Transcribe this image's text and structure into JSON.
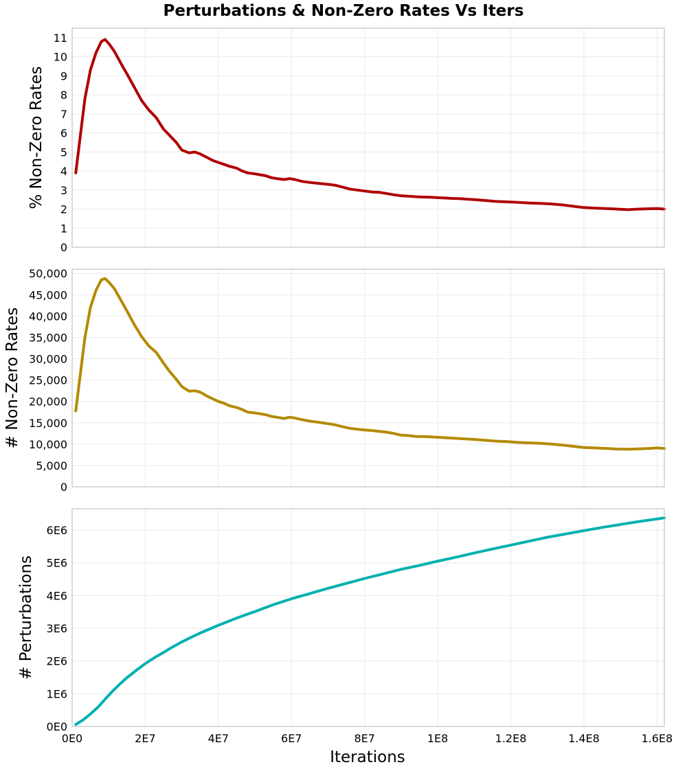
{
  "chart_data": {
    "title": "Perturbations & Non-Zero Rates Vs Iters",
    "type": "line",
    "x": {
      "label": "Iterations",
      "range": [
        0,
        162000000
      ],
      "ticks": [
        0,
        20000000,
        40000000,
        60000000,
        80000000,
        100000000,
        120000000,
        140000000,
        160000000
      ],
      "tick_labels": [
        "0E0",
        "2E7",
        "4E7",
        "6E7",
        "8E7",
        "1E8",
        "1.2E8",
        "1.4E8",
        "1.6E8"
      ]
    },
    "panels": [
      {
        "name": "pct-nonzero",
        "ylabel": "% Non-Zero Rates",
        "ylim": [
          0,
          11.5
        ],
        "yticks": [
          0,
          1,
          2,
          3,
          4,
          5,
          6,
          7,
          8,
          9,
          10,
          11
        ],
        "ytick_labels": [
          "0",
          "1",
          "2",
          "3",
          "4",
          "5",
          "6",
          "7",
          "8",
          "9",
          "10",
          "11"
        ],
        "color": "#b00000",
        "series": {
          "name": "% Non-Zero Rates",
          "x": [
            1000000,
            3500000,
            5000000,
            6500000,
            8000000,
            9000000,
            10000000,
            11500000,
            13500000,
            15000000,
            17000000,
            19000000,
            21000000,
            23000000,
            25000000,
            26500000,
            28500000,
            30000000,
            32000000,
            33500000,
            35000000,
            37000000,
            38500000,
            40000000,
            41500000,
            43000000,
            45000000,
            46500000,
            48000000,
            50000000,
            51500000,
            53000000,
            54500000,
            56000000,
            58000000,
            59500000,
            61000000,
            63000000,
            65000000,
            67500000,
            70000000,
            72000000,
            74000000,
            76000000,
            78000000,
            80000000,
            82000000,
            84000000,
            86000000,
            88000000,
            90000000,
            92000000,
            94000000,
            96000000,
            98000000,
            100000000,
            102000000,
            104000000,
            106000000,
            108000000,
            110000000,
            113000000,
            116000000,
            119000000,
            122000000,
            125000000,
            128000000,
            131000000,
            134000000,
            137000000,
            140000000,
            143000000,
            146000000,
            149000000,
            152000000,
            155000000,
            158000000,
            160000000,
            162000000
          ],
          "y": [
            3.9,
            7.8,
            9.3,
            10.2,
            10.8,
            10.9,
            10.7,
            10.3,
            9.6,
            9.1,
            8.4,
            7.7,
            7.2,
            6.8,
            6.2,
            5.9,
            5.5,
            5.1,
            4.95,
            5.0,
            4.9,
            4.7,
            4.55,
            4.45,
            4.35,
            4.25,
            4.15,
            4.0,
            3.9,
            3.85,
            3.8,
            3.75,
            3.65,
            3.6,
            3.55,
            3.6,
            3.55,
            3.45,
            3.4,
            3.35,
            3.3,
            3.25,
            3.15,
            3.05,
            3.0,
            2.95,
            2.9,
            2.88,
            2.82,
            2.75,
            2.7,
            2.68,
            2.65,
            2.63,
            2.62,
            2.6,
            2.58,
            2.56,
            2.55,
            2.52,
            2.5,
            2.45,
            2.4,
            2.38,
            2.35,
            2.32,
            2.3,
            2.27,
            2.22,
            2.15,
            2.08,
            2.05,
            2.03,
            2.0,
            1.97,
            2.0,
            2.02,
            2.03,
            2.0
          ]
        }
      },
      {
        "name": "count-nonzero",
        "ylabel": "# Non-Zero Rates",
        "ylim": [
          0,
          51000
        ],
        "yticks": [
          0,
          5000,
          10000,
          15000,
          20000,
          25000,
          30000,
          35000,
          40000,
          45000,
          50000
        ],
        "ytick_labels": [
          "0",
          "5,000",
          "10,000",
          "15,000",
          "20,000",
          "25,000",
          "30,000",
          "35,000",
          "40,000",
          "45,000",
          "50,000"
        ],
        "color": "#b38a00",
        "series": {
          "name": "# Non-Zero Rates",
          "x": [
            1000000,
            3500000,
            5000000,
            6500000,
            8000000,
            9000000,
            10000000,
            11500000,
            13500000,
            15000000,
            17000000,
            19000000,
            21000000,
            23000000,
            25000000,
            26500000,
            28500000,
            30000000,
            32000000,
            33500000,
            35000000,
            37000000,
            38500000,
            40000000,
            41500000,
            43000000,
            45000000,
            46500000,
            48000000,
            50000000,
            51500000,
            53000000,
            54500000,
            56000000,
            58000000,
            59500000,
            61000000,
            63000000,
            65000000,
            67500000,
            70000000,
            72000000,
            74000000,
            76000000,
            78000000,
            80000000,
            82000000,
            84000000,
            86000000,
            88000000,
            90000000,
            92000000,
            94000000,
            96000000,
            98000000,
            100000000,
            102000000,
            104000000,
            106000000,
            108000000,
            110000000,
            113000000,
            116000000,
            119000000,
            122000000,
            125000000,
            128000000,
            131000000,
            134000000,
            137000000,
            140000000,
            143000000,
            146000000,
            149000000,
            152000000,
            155000000,
            158000000,
            160000000,
            162000000
          ],
          "y": [
            17800,
            35000,
            42000,
            46000,
            48500,
            48800,
            48000,
            46500,
            43500,
            41200,
            38000,
            35200,
            33000,
            31500,
            29000,
            27200,
            25200,
            23500,
            22400,
            22500,
            22200,
            21200,
            20600,
            20000,
            19600,
            19000,
            18600,
            18100,
            17500,
            17300,
            17100,
            16900,
            16500,
            16300,
            16000,
            16300,
            16100,
            15700,
            15400,
            15100,
            14800,
            14500,
            14100,
            13700,
            13500,
            13300,
            13200,
            13000,
            12800,
            12500,
            12100,
            12000,
            11800,
            11800,
            11700,
            11600,
            11500,
            11400,
            11300,
            11200,
            11100,
            10900,
            10700,
            10600,
            10400,
            10300,
            10200,
            10000,
            9800,
            9500,
            9200,
            9100,
            9000,
            8850,
            8800,
            8900,
            9000,
            9100,
            9000
          ]
        }
      },
      {
        "name": "perturbations",
        "ylabel": "# Perturbations",
        "ylim": [
          0,
          6650000
        ],
        "yticks": [
          0,
          1000000,
          2000000,
          3000000,
          4000000,
          5000000,
          6000000
        ],
        "ytick_labels": [
          "0E0",
          "1E6",
          "2E6",
          "3E6",
          "4E6",
          "5E6",
          "6E6"
        ],
        "color": "#00b0b0",
        "series": {
          "name": "# Perturbations",
          "x": [
            1000000,
            3000000,
            5000000,
            7000000,
            9000000,
            11000000,
            13000000,
            15000000,
            17500000,
            20000000,
            22500000,
            25000000,
            27500000,
            30000000,
            32500000,
            35000000,
            37500000,
            40000000,
            42500000,
            45000000,
            47500000,
            50000000,
            55000000,
            60000000,
            65000000,
            70000000,
            75000000,
            80000000,
            85000000,
            90000000,
            95000000,
            100000000,
            105000000,
            110000000,
            115000000,
            120000000,
            125000000,
            130000000,
            135000000,
            140000000,
            145000000,
            150000000,
            155000000,
            162000000
          ],
          "y": [
            60000,
            200000,
            380000,
            580000,
            830000,
            1070000,
            1290000,
            1490000,
            1710000,
            1920000,
            2100000,
            2260000,
            2430000,
            2580000,
            2720000,
            2850000,
            2970000,
            3090000,
            3200000,
            3310000,
            3410000,
            3510000,
            3720000,
            3900000,
            4060000,
            4220000,
            4370000,
            4520000,
            4660000,
            4800000,
            4920000,
            5050000,
            5170000,
            5300000,
            5420000,
            5540000,
            5660000,
            5780000,
            5880000,
            5980000,
            6080000,
            6170000,
            6260000,
            6370000
          ]
        }
      }
    ]
  }
}
